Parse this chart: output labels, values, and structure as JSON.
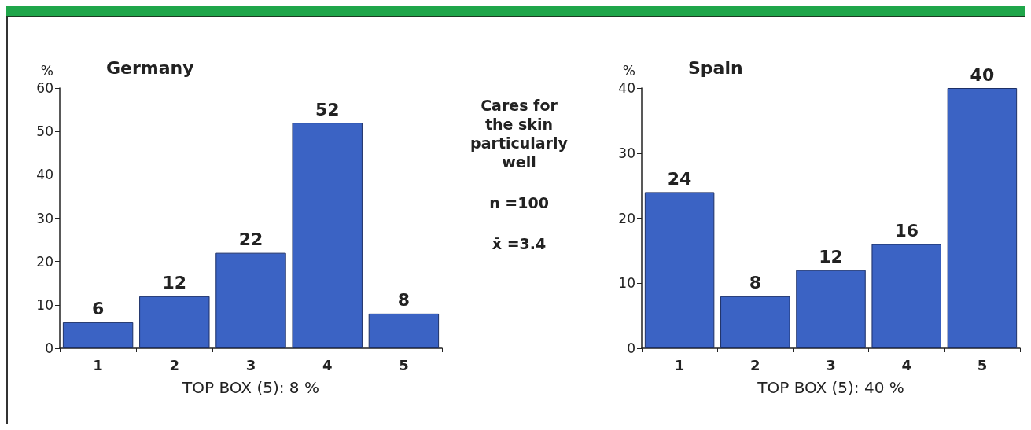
{
  "chart_data": [
    {
      "type": "bar",
      "title": "Germany",
      "ylabel": "%",
      "xlabel": "TOP BOX (5): 8 %",
      "categories": [
        "1",
        "2",
        "3",
        "4",
        "5"
      ],
      "values": [
        6,
        12,
        22,
        52,
        8
      ],
      "color": "#3b63c4",
      "ylim": [
        0,
        60
      ],
      "yticks": [
        0,
        10,
        20,
        30,
        40,
        50,
        60
      ],
      "data_labels": true,
      "grid": false
    },
    {
      "type": "other",
      "annotations": [
        "Cares for the skin particularly well",
        "n =100",
        "x̄ =3.4"
      ]
    },
    {
      "type": "bar",
      "title": "Spain",
      "ylabel": "%",
      "xlabel": "TOP BOX (5): 40 %",
      "categories": [
        "1",
        "2",
        "3",
        "4",
        "5"
      ],
      "values": [
        24,
        8,
        12,
        16,
        40
      ],
      "color": "#3b63c4",
      "ylim": [
        0,
        40
      ],
      "yticks": [
        0,
        10,
        20,
        30,
        40
      ],
      "data_labels": true,
      "grid": false
    }
  ]
}
